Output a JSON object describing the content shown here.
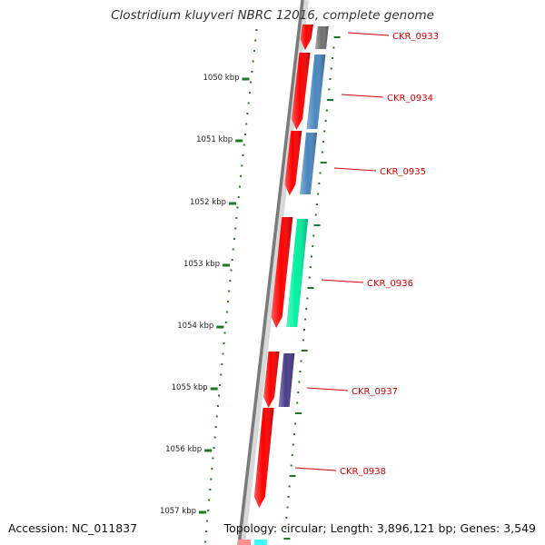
{
  "title": "Clostridium kluyveri NBRC 12016, complete genome",
  "footer": {
    "accession": "Accession: NC_011837",
    "topology": "Topology: circular; Length: 3,896,121 bp; Genes: 3,549"
  },
  "colors": {
    "gene_strand": "#ff0000",
    "tick": "#1e7a1e",
    "backbone": "#808080",
    "label": "#d40000"
  },
  "scale_labels": [
    "1050 kbp",
    "1051 kbp",
    "1052 kbp",
    "1053 kbp",
    "1054 kbp",
    "1055 kbp",
    "1056 kbp",
    "1057 kbp"
  ],
  "genes": [
    {
      "id": "CKR_0933",
      "cog_color": "#707070"
    },
    {
      "id": "CKR_0934",
      "cog_color": "#4a86c0"
    },
    {
      "id": "CKR_0935",
      "cog_color": "#4a86c0"
    },
    {
      "id": "CKR_0936",
      "cog_color": "#00f0a0"
    },
    {
      "id": "CKR_0937",
      "cog_color": "#483d8b"
    },
    {
      "id": "CKR_0938",
      "cog_color": null
    }
  ]
}
